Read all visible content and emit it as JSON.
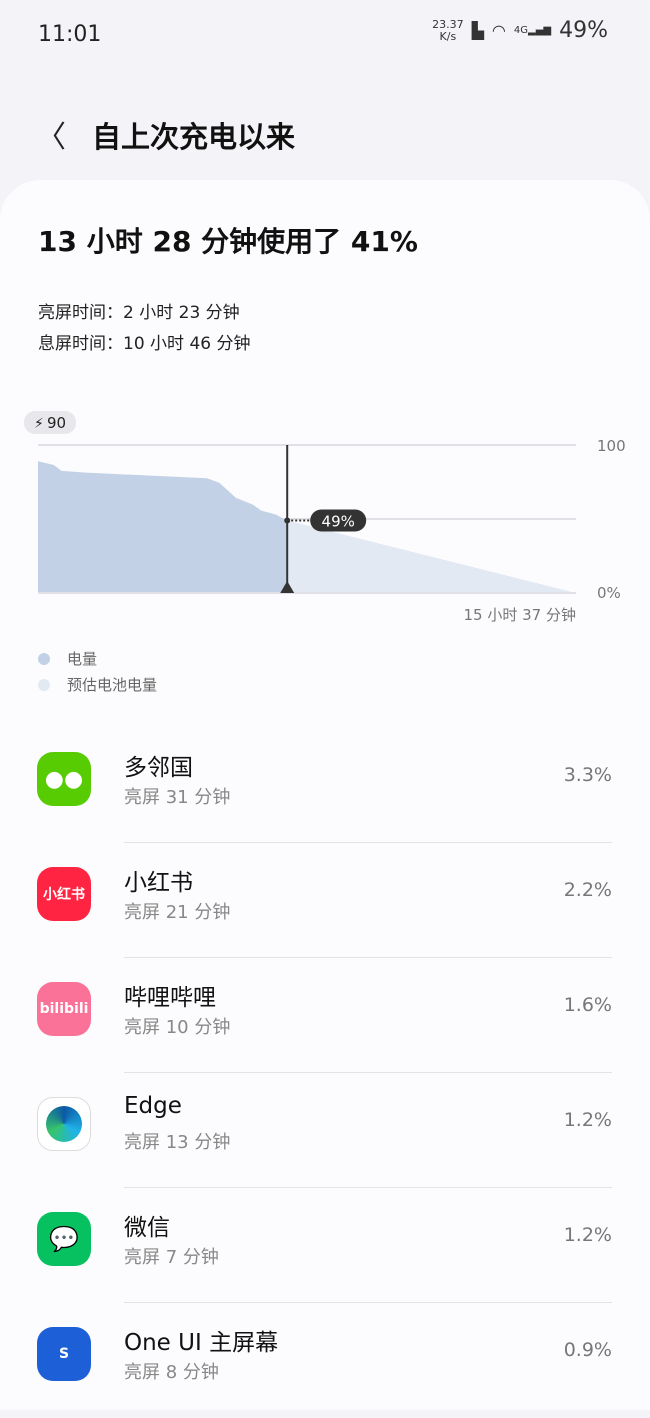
{
  "status_bar": {
    "time": "11:01",
    "net_speed": "23.37",
    "net_unit": "K/s",
    "network": "4G",
    "battery": "49%"
  },
  "header": {
    "title": "自上次充电以来"
  },
  "summary": {
    "headline": "13 小时 28 分钟使用了 41%",
    "screen_on": "亮屏时间：2 小时 23 分钟",
    "screen_off": "息屏时间：10 小时 46 分钟"
  },
  "chart_data": {
    "type": "area",
    "charge_badge": "90",
    "y_tick_labels": [
      "100",
      "0%"
    ],
    "ylim": [
      0,
      100
    ],
    "x_end_label": "15 小时 37 分钟",
    "current_label": "49%",
    "current_x_hours": 13.47,
    "xlim_hours": [
      0,
      29.08
    ],
    "series": [
      {
        "name": "电量",
        "color": "#c3d1e6",
        "x": [
          0,
          0.84,
          1.28,
          2.5,
          9.13,
          9.8,
          10.7,
          11.6,
          12.07,
          12.85,
          13.47
        ],
        "y": [
          89,
          86.6,
          82.5,
          81.4,
          77.5,
          74.5,
          64.3,
          59.8,
          55.7,
          53,
          49
        ]
      },
      {
        "name": "预估电池电量",
        "color": "#e3e9f3",
        "x": [
          13.47,
          29.08
        ],
        "y": [
          49,
          0
        ]
      }
    ]
  },
  "apps": [
    {
      "name": "多邻国",
      "usage": "亮屏 31 分钟",
      "percent": "3.3%",
      "icon": "duolingo-icon",
      "color": "#58cc02"
    },
    {
      "name": "小红书",
      "usage": "亮屏 21 分钟",
      "percent": "2.2%",
      "icon": "xiaohongshu-icon",
      "color": "#ff2442",
      "label": "小红书"
    },
    {
      "name": "哔哩哔哩",
      "usage": "亮屏 10 分钟",
      "percent": "1.6%",
      "icon": "bilibili-icon",
      "color": "#fb7299",
      "label": "bilibili"
    },
    {
      "name": "Edge",
      "usage": "亮屏 13 分钟",
      "percent": "1.2%",
      "icon": "edge-icon",
      "color": "#ffffff"
    },
    {
      "name": "微信",
      "usage": "亮屏 7 分钟",
      "percent": "1.2%",
      "icon": "wechat-icon",
      "color": "#07c160"
    },
    {
      "name": "One UI 主屏幕",
      "usage": "亮屏 8 分钟",
      "percent": "0.9%",
      "icon": "one-ui-home-icon",
      "color": "#1d5fd6",
      "label": "S"
    }
  ]
}
